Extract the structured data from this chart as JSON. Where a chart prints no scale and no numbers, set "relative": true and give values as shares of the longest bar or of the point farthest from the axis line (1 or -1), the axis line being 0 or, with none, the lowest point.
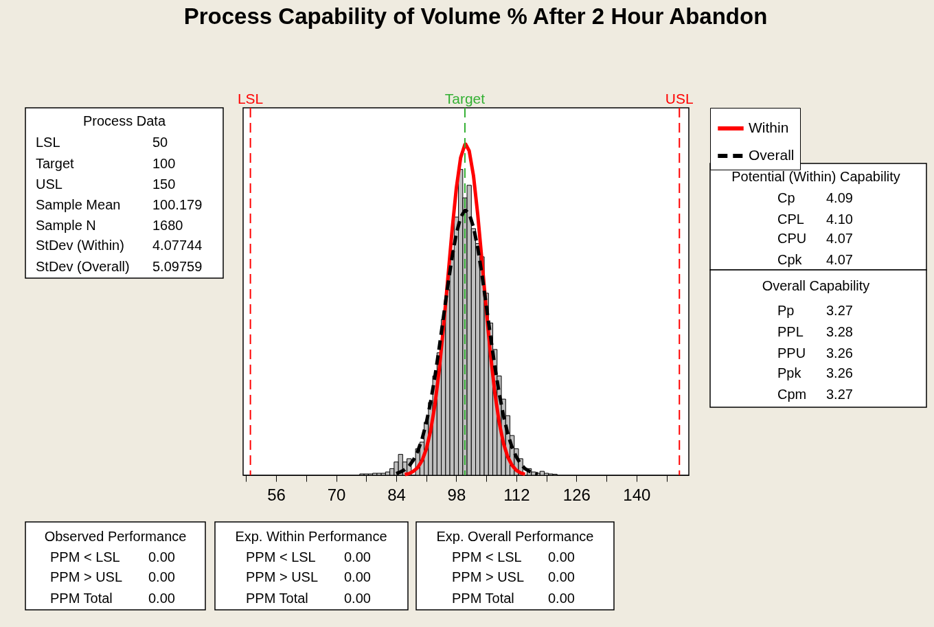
{
  "chart_data": {
    "type": "histogram",
    "title": "Process Capability of Volume %  After 2 Hour Abandon",
    "relative": true,
    "color": "#c0c0c0",
    "bins": [
      75.5,
      76.5,
      77.5,
      78.5,
      79.5,
      80.5,
      81.5,
      82.5,
      83.5,
      84.5,
      85.5,
      86.5,
      87.5,
      88.5,
      89.5,
      90.5,
      91.5,
      92.5,
      93.5,
      94.5,
      95.5,
      96.5,
      97.5,
      98.5,
      99.5,
      100.5,
      101.5,
      102.5,
      103.5,
      104.5,
      105.5,
      106.5,
      107.5,
      108.5,
      109.5,
      110.5,
      111.5,
      112.5,
      113.5,
      114.5,
      115.5,
      116.5,
      117.5,
      118.5,
      119.5,
      120.5,
      121.5
    ],
    "values": [
      0.004,
      0.004,
      0.004,
      0.006,
      0.006,
      0.006,
      0.01,
      0.02,
      0.04,
      0.063,
      0.04,
      0.05,
      null,
      0.08,
      0.1,
      0.16,
      0.22,
      0.3,
      0.37,
      0.47,
      0.56,
      0.68,
      0.78,
      0.924,
      0.838,
      0.876,
      0.745,
      0.7,
      0.66,
      0.55,
      0.46,
      0.38,
      0.3,
      0.23,
      0.18,
      0.12,
      0.08,
      0.05,
      null,
      0.02,
      0.01,
      0.006,
      0.012,
      0.006,
      0.004,
      0.003
    ],
    "series": [
      {
        "name": "Within",
        "color": "#ff0000",
        "type": "line",
        "line_style": "solid",
        "x": [
          86,
          87,
          88,
          89,
          90,
          91,
          92,
          93,
          94,
          95,
          96,
          97,
          98,
          99,
          100,
          100.179,
          101,
          102,
          103,
          104,
          105,
          106,
          107,
          108,
          109,
          110,
          111,
          112,
          113,
          114
        ],
        "values": [
          0.002,
          0.005,
          0.012,
          0.023,
          0.044,
          0.079,
          0.134,
          0.212,
          0.317,
          0.446,
          0.591,
          0.738,
          0.867,
          0.959,
          0.999,
          1,
          0.98,
          0.905,
          0.787,
          0.645,
          0.497,
          0.361,
          0.247,
          0.159,
          0.096,
          0.055,
          0.03,
          0.015,
          0.007,
          0.003
        ]
      },
      {
        "name": "Overall",
        "color": "#000000",
        "type": "line",
        "line_style": "dashed",
        "x": [
          84,
          85,
          86,
          87,
          88,
          89,
          90,
          91,
          92,
          93,
          94,
          95,
          96,
          97,
          98,
          99,
          100,
          100.179,
          101,
          102,
          103,
          104,
          105,
          106,
          107,
          108,
          109,
          110,
          111,
          112,
          113,
          114,
          115,
          116,
          117
        ],
        "values": [
          0.005,
          0.01,
          0.017,
          0.028,
          0.046,
          0.072,
          0.109,
          0.158,
          0.221,
          0.297,
          0.384,
          0.478,
          0.572,
          0.658,
          0.73,
          0.779,
          0.8,
          0.8,
          0.79,
          0.75,
          0.687,
          0.604,
          0.511,
          0.417,
          0.327,
          0.247,
          0.179,
          0.125,
          0.084,
          0.055,
          0.034,
          0.02,
          0.012,
          0.007,
          0.004
        ]
      }
    ],
    "xlim": [
      48.3,
      152.2
    ],
    "xticks": [
      {
        "value": 49,
        "label": null
      },
      56,
      {
        "value": 63,
        "label": null
      },
      70,
      {
        "value": 77,
        "label": null
      },
      84,
      {
        "value": 91,
        "label": null
      },
      98,
      {
        "value": 105,
        "label": null
      },
      112,
      {
        "value": 119,
        "label": null
      },
      126,
      {
        "value": 133,
        "label": null
      },
      140,
      {
        "value": 147,
        "label": null
      }
    ],
    "ref_lines": [
      {
        "axis": "x",
        "value": 50,
        "label": "LSL",
        "color": "#ff0000",
        "line_style": "dashed"
      },
      {
        "axis": "x",
        "value": 100,
        "label": "Target",
        "color": "#33b033",
        "line_style": "dashed"
      },
      {
        "axis": "x",
        "value": 150,
        "label": "USL",
        "color": "#ff0000",
        "line_style": "dashed"
      }
    ],
    "legend": "top right",
    "grid": false,
    "marker": "none",
    "annotations": [
      "Process Data",
      "LSL",
      "50",
      "Target",
      "100",
      "USL",
      "150",
      "Sample Mean",
      "100.179",
      "Sample N",
      "1680",
      "StDev (Within)",
      "4.07744",
      "StDev (Overall)",
      "5.09759",
      "Potential (Within) Capability",
      "Cp",
      "4.09",
      "CPL",
      "4.10",
      "CPU",
      "4.07",
      "Cpk",
      "4.07",
      "Overall Capability",
      "Pp",
      "3.27",
      "PPL",
      "3.28",
      "PPU",
      "3.26",
      "Ppk",
      "3.26",
      "Cpm",
      "3.27",
      "Observed Performance",
      "PPM < LSL",
      "0.00",
      "PPM > USL",
      "0.00",
      "PPM Total",
      "0.00",
      "Exp. Within Performance",
      "PPM < LSL",
      "0.00",
      "PPM > USL",
      "0.00",
      "PPM Total",
      "0.00",
      "Exp. Overall Performance",
      "PPM < LSL",
      "0.00",
      "PPM > USL",
      "0.00",
      "PPM Total",
      "0.00"
    ]
  }
}
